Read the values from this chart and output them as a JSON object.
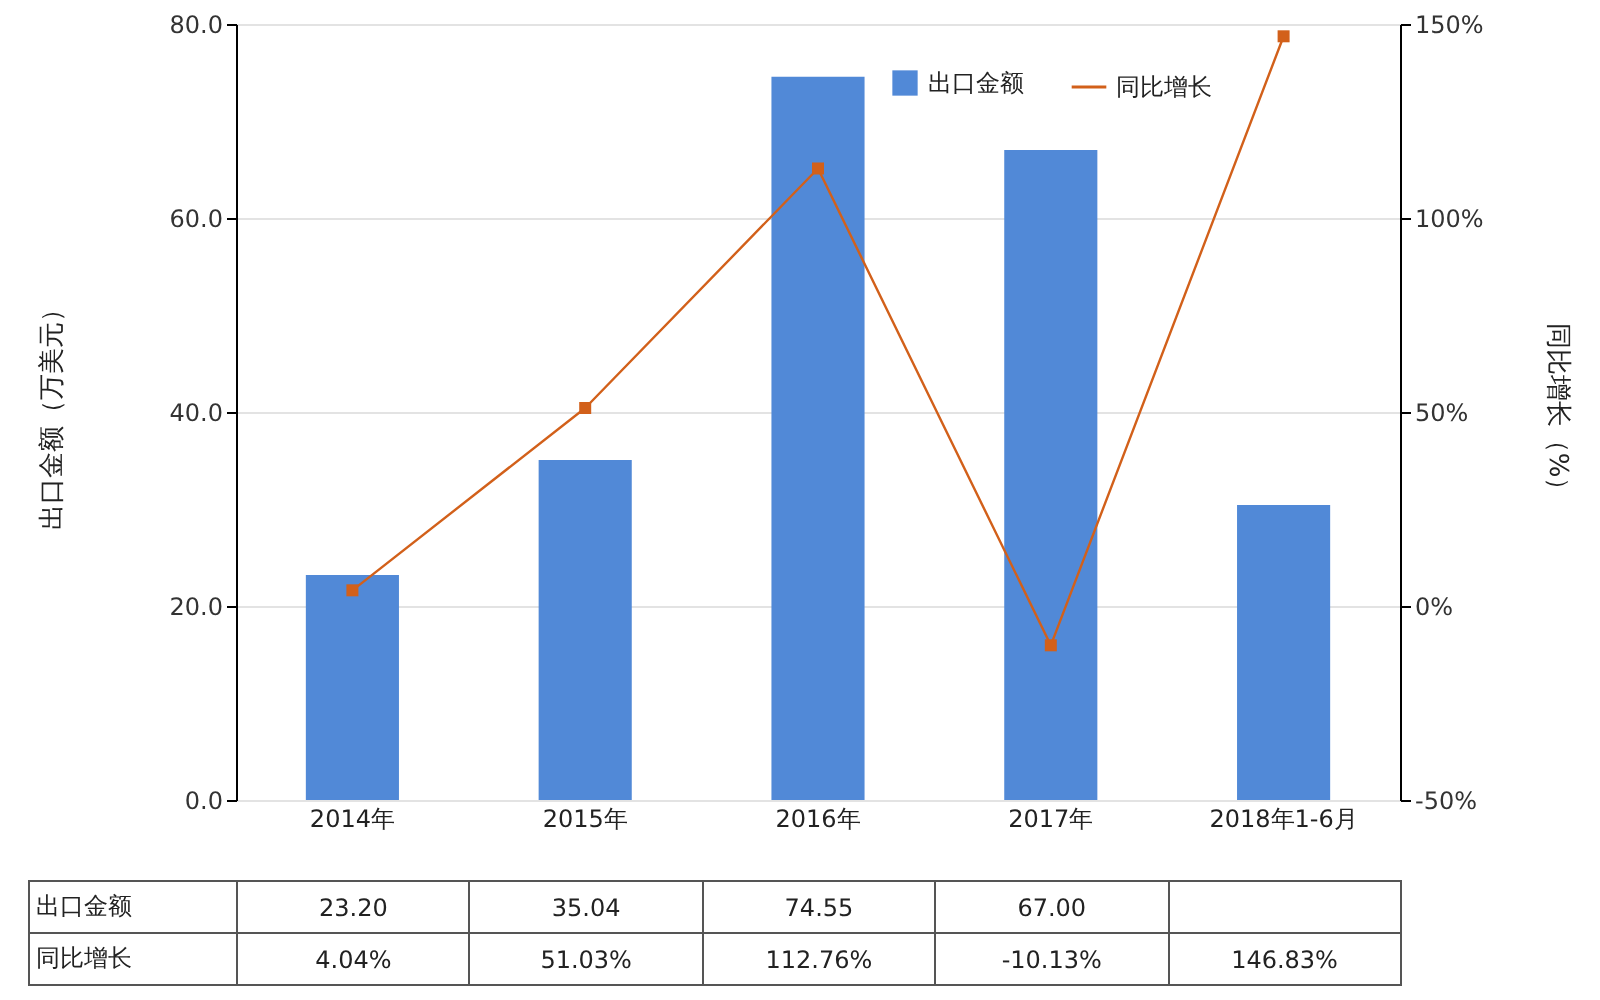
{
  "chart_data": {
    "type": "bar",
    "categories": [
      "2014年",
      "2015年",
      "2016年",
      "2017年",
      "2018年1-6月"
    ],
    "ylabel": "出口金额（万美元）",
    "y2label": "同比增长（%）",
    "ylim": [
      0,
      80
    ],
    "yticks": [
      {
        "value": 0,
        "label": "0.0"
      },
      {
        "value": 20,
        "label": "20.0"
      },
      {
        "value": 40,
        "label": "40.0"
      },
      {
        "value": 60,
        "label": "60.0"
      },
      {
        "value": 80,
        "label": "80.0"
      }
    ],
    "y2lim": [
      -50,
      150
    ],
    "y2ticks": [
      {
        "value": -50,
        "label": "-50%"
      },
      {
        "value": 0,
        "label": "0%"
      },
      {
        "value": 50,
        "label": "50%"
      },
      {
        "value": 100,
        "label": "100%"
      },
      {
        "value": 150,
        "label": "150%"
      }
    ],
    "grid": "y",
    "legend": "top right",
    "marker": "square",
    "line_style": "solid",
    "series": [
      {
        "name": "出口金额",
        "color": "#5189d7",
        "values": [
          23.2,
          35.04,
          74.55,
          67.0,
          30.4
        ],
        "value_labels": [
          "23.20",
          "35.04",
          "74.55",
          "67.00",
          null
        ]
      },
      {
        "name": "同比增长",
        "type": "line",
        "axis": "y2",
        "color": "#d2601a",
        "values": [
          4.04,
          51.03,
          112.76,
          -10.13,
          146.83
        ],
        "value_labels": [
          "4.04%",
          "51.03%",
          "112.76%",
          "-10.13%",
          "146.83%"
        ]
      }
    ]
  }
}
